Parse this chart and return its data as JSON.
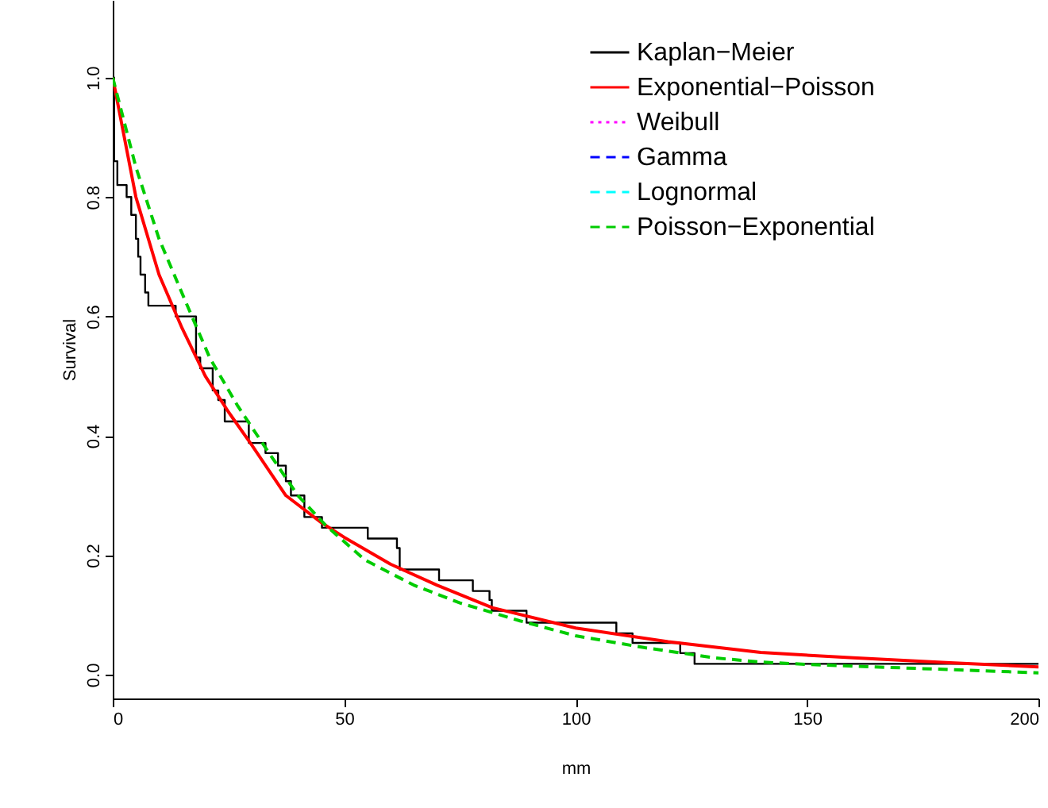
{
  "chart_data": {
    "type": "line",
    "xlabel": "mm",
    "ylabel": "Survival",
    "xlim": [
      0,
      200
    ],
    "ylim": [
      -0.04,
      1.13
    ],
    "xticks": [
      0,
      50,
      100,
      150,
      200
    ],
    "yticks": [
      {
        "value": 0,
        "label": "0.0"
      },
      0.2,
      0.4,
      0.6,
      0.8,
      {
        "value": 1,
        "label": "1.0"
      }
    ],
    "grid": false,
    "legend": "top right",
    "series": [
      {
        "name": "Kaplan−Meier",
        "type": "step",
        "color": "#000000",
        "line_style": "solid",
        "x": [
          0,
          0.3,
          1,
          3,
          4,
          5,
          5.5,
          6,
          7,
          7.7,
          13.6,
          18.0,
          18.9,
          21.6,
          22.8,
          24.2,
          29.4,
          33.0,
          35.7,
          37.4,
          38.5,
          39.5,
          41.4,
          45.2,
          55.1,
          61.4,
          62,
          70.5,
          77.8,
          81.4,
          81.9,
          89.4,
          108.8,
          112.3,
          122.6,
          125.7,
          200
        ],
        "values": [
          1.0,
          0.86,
          0.82,
          0.8,
          0.77,
          0.73,
          0.7,
          0.67,
          0.64,
          0.618,
          0.6,
          0.531,
          0.513,
          0.476,
          0.46,
          0.424,
          0.388,
          0.371,
          0.35,
          0.324,
          0.3,
          0.3,
          0.264,
          0.246,
          0.228,
          0.212,
          0.176,
          0.158,
          0.14,
          0.125,
          0.107,
          0.087,
          0.069,
          0.053,
          0.036,
          0.018,
          0.018
        ]
      },
      {
        "name": "Exponential−Poisson",
        "color": "#ff0000",
        "line_style": "solid",
        "x": [
          0,
          5,
          10,
          15,
          20,
          25,
          30,
          37.4,
          45,
          50,
          60,
          70,
          82,
          100,
          120,
          140,
          160,
          180,
          200
        ],
        "values": [
          1.0,
          0.8,
          0.67,
          0.58,
          0.5,
          0.44,
          0.385,
          0.3,
          0.255,
          0.23,
          0.185,
          0.15,
          0.112,
          0.078,
          0.055,
          0.037,
          0.028,
          0.02,
          0.013
        ]
      },
      {
        "name": "Weibull",
        "color": "#ff00ff",
        "line_style": "dotted"
      },
      {
        "name": "Gamma",
        "color": "#0000ff",
        "line_style": "dashed"
      },
      {
        "name": "Lognormal",
        "color": "#00ffff",
        "line_style": "dashed"
      },
      {
        "name": "Poisson−Exponential",
        "color": "#00cc00",
        "line_style": "dashed",
        "x": [
          0,
          5,
          10,
          16,
          21,
          27,
          33,
          40,
          46,
          54.5,
          65,
          75,
          88,
          100,
          115,
          130,
          140,
          150,
          175,
          200
        ],
        "values": [
          1.0,
          0.85,
          0.73,
          0.62,
          0.53,
          0.45,
          0.38,
          0.3,
          0.25,
          0.192,
          0.15,
          0.12,
          0.09,
          0.065,
          0.045,
          0.028,
          0.021,
          0.017,
          0.01,
          0.003
        ]
      }
    ]
  }
}
